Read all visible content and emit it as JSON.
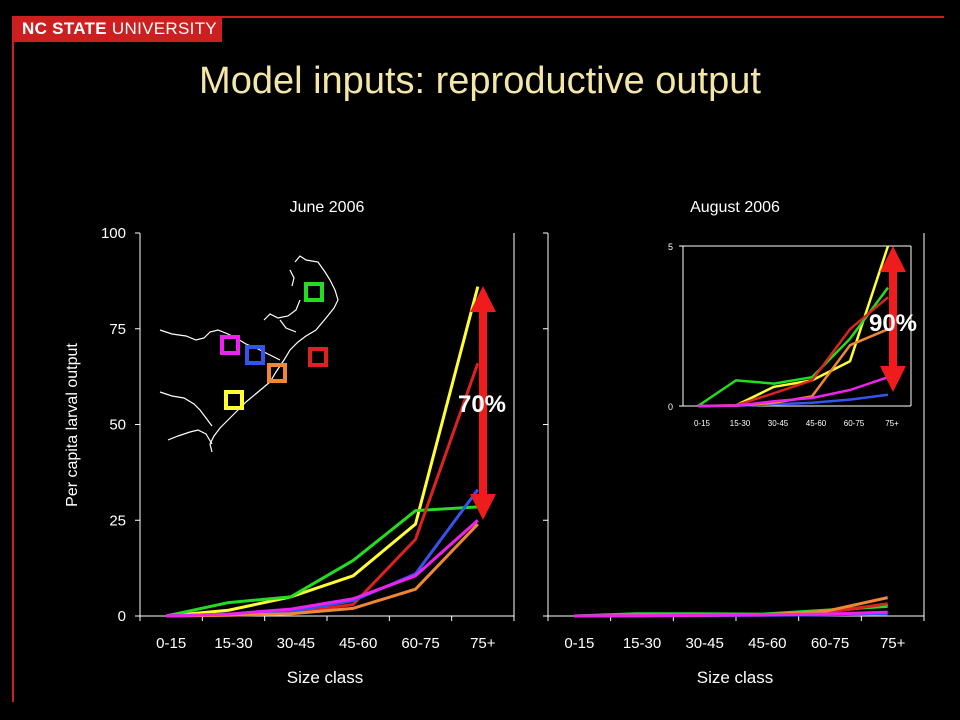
{
  "header": {
    "brand_bold": "NC STATE",
    "brand_rest": " UNIVERSITY",
    "title": "Model inputs: reproductive output",
    "brand_color": "#cc1f1f",
    "title_color": "#f3e6a6"
  },
  "chart_data": [
    {
      "type": "line",
      "title": "June 2006",
      "xlabel": "Size class",
      "ylabel": "Per capita larval output",
      "categories": [
        "0-15",
        "15-30",
        "30-45",
        "45-60",
        "60-75",
        "75+"
      ],
      "ylim": [
        0,
        100
      ],
      "yticks": [
        "0",
        "25",
        "50",
        "75",
        "100"
      ],
      "series": [
        {
          "color": "#ffff33",
          "values": [
            0,
            1.5,
            5,
            10.5,
            24,
            86
          ]
        },
        {
          "color": "#22dd22",
          "values": [
            0,
            3.5,
            5,
            14.5,
            27.5,
            28.5
          ]
        },
        {
          "color": "#dd2222",
          "values": [
            0,
            0.3,
            0.8,
            3,
            20,
            66
          ]
        },
        {
          "color": "#3355ee",
          "values": [
            0,
            0.5,
            1.2,
            4,
            11,
            33
          ]
        },
        {
          "color": "#ee8833",
          "values": [
            0,
            0.2,
            0.6,
            2,
            7,
            24
          ]
        },
        {
          "color": "#ee22ee",
          "values": [
            0,
            0.5,
            1.8,
            4.5,
            10.5,
            25
          ]
        }
      ],
      "annotation": "70%"
    },
    {
      "type": "line",
      "title": "August 2006",
      "xlabel": "Size class",
      "categories": [
        "0-15",
        "15-30",
        "30-45",
        "45-60",
        "60-75",
        "75+"
      ],
      "ylim": [
        0,
        100
      ],
      "series": [
        {
          "color": "#ffff33",
          "values": [
            0,
            0.1,
            0.3,
            0.4,
            1.0,
            3.0
          ]
        },
        {
          "color": "#22dd22",
          "values": [
            0,
            0.6,
            0.6,
            0.5,
            1.5,
            2.5
          ]
        },
        {
          "color": "#dd2222",
          "values": [
            0,
            0.1,
            0.2,
            0.3,
            0.9,
            3.2
          ]
        },
        {
          "color": "#3355ee",
          "values": [
            0,
            0.05,
            0.1,
            0.2,
            0.3,
            0.6
          ]
        },
        {
          "color": "#ee8833",
          "values": [
            0,
            0.1,
            0.2,
            0.3,
            1.2,
            4.8
          ]
        },
        {
          "color": "#ee22ee",
          "values": [
            0,
            0.05,
            0.2,
            0.3,
            0.5,
            1.0
          ]
        }
      ],
      "inset": {
        "ylim": [
          0,
          5
        ],
        "yticks": [
          "0",
          "5"
        ],
        "series": [
          {
            "color": "#ffff33",
            "values": [
              0,
              0.02,
              0.6,
              0.8,
              1.4,
              5.0
            ]
          },
          {
            "color": "#22dd22",
            "values": [
              0,
              0.8,
              0.7,
              0.9,
              2.1,
              3.7
            ]
          },
          {
            "color": "#dd2222",
            "values": [
              0,
              0.02,
              0.4,
              0.8,
              2.4,
              3.4
            ]
          },
          {
            "color": "#3355ee",
            "values": [
              0,
              0.01,
              0.05,
              0.1,
              0.2,
              0.35
            ]
          },
          {
            "color": "#ee8833",
            "values": [
              0,
              0.01,
              0.1,
              0.3,
              1.9,
              2.4
            ]
          },
          {
            "color": "#ee22ee",
            "values": [
              0,
              0.01,
              0.15,
              0.25,
              0.5,
              0.9
            ]
          }
        ]
      },
      "annotation": "90%"
    }
  ]
}
